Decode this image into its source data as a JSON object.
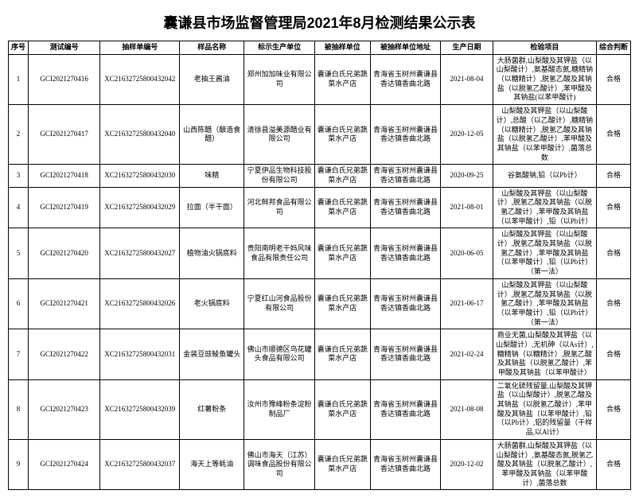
{
  "title": "囊谦县市场监督管理局2021年8月检测结果公示表",
  "headers": {
    "seq": "序号",
    "testId": "测试编号",
    "sampleId": "抽样单编号",
    "sampleName": "样品名称",
    "producer": "标示生产单位",
    "sampledUnit": "被抽样单位",
    "sampledAddr": "被抽样单位地址",
    "prodDate": "生产日期",
    "inspectItems": "检验项目",
    "judgement": "综合判断"
  },
  "rows": [
    {
      "seq": "1",
      "testId": "GCI2021270416",
      "sampleId": "XC21632725800432042",
      "sampleName": "老抽王酱油",
      "producer": "郑州加加味业有限公司",
      "sampledUnit": "囊谦白氏兄弟蔬菜水产店",
      "sampledAddr": "青海省玉树州囊谦县香达镇香曲北路",
      "prodDate": "2021-08-04",
      "inspectItems": "大肠菌群,山梨酸及其钾盐（以山梨酸计）,氨基酸态氮,糖精钠（以糖精计）,脱氢乙酸及其钠盐（以脱氢乙酸计）,苯甲酸及其钠盐(以苯甲酸计)",
      "judgement": "合格"
    },
    {
      "seq": "2",
      "testId": "GCI2021270417",
      "sampleId": "XC21632725800432040",
      "sampleName": "山西陈醋（酿造食醋）",
      "producer": "清徐县溢美源醋业有限公司",
      "sampledUnit": "囊谦白氏兄弟蔬菜水产店",
      "sampledAddr": "青海省玉树州囊谦县香达镇香曲北路",
      "prodDate": "2020-12-05",
      "inspectItems": "山梨酸及其钾盐（以山梨酸计）,总酸（以乙酸计）,糖精钠（以糖精计）,脱氢乙酸及其钠盐（以脱氢乙酸计）,苯甲酸及其钠盐（以苯甲酸计）,菌落总数",
      "judgement": "合格"
    },
    {
      "seq": "3",
      "testId": "GCI2021270418",
      "sampleId": "XC21632725800432030",
      "sampleName": "味精",
      "producer": "宁夏伊品生物科技股份有限公司",
      "sampledUnit": "囊谦白氏兄弟蔬菜水产店",
      "sampledAddr": "青海省玉树州囊谦县香达镇香曲北路",
      "prodDate": "2020-09-25",
      "inspectItems": "谷氨酸钠,铅（以Pb计）",
      "judgement": "合格"
    },
    {
      "seq": "4",
      "testId": "GCI2021270419",
      "sampleId": "XC21632725800432029",
      "sampleName": "拉面（半干面）",
      "producer": "河北鲜邦食品有限公司",
      "sampledUnit": "囊谦白氏兄弟蔬菜水产店",
      "sampledAddr": "青海省玉树州囊谦县香达镇香曲北路",
      "prodDate": "2021-08-01",
      "inspectItems": "山梨酸及其钾盐（以山梨酸计）,脱氢乙酸及其钠盐（以脱氢乙酸计）,苯甲酸及其钠盐（以苯甲酸计）,铅（以Pb计）",
      "judgement": "合格"
    },
    {
      "seq": "5",
      "testId": "GCI2021270420",
      "sampleId": "XC21632725800432027",
      "sampleName": "植物油火锅底料",
      "producer": "贵阳南明老干妈风味食品有限责任公司",
      "sampledUnit": "囊谦白氏兄弟蔬菜水产店",
      "sampledAddr": "青海省玉树州囊谦县香达镇香曲北路",
      "prodDate": "2020-06-05",
      "inspectItems": "山梨酸及其钾盐（以山梨酸计）,脱氢乙酸及其钠盐（以脱氢乙酸计）,苯甲酸及其钠盐（以苯甲酸计）,铅（以Pb计）（第一法）",
      "judgement": "合格"
    },
    {
      "seq": "6",
      "testId": "GCI2021270421",
      "sampleId": "XC21632725800432026",
      "sampleName": "老火锅底料",
      "producer": "宁夏红山河食品股份有限公司",
      "sampledUnit": "囊谦白氏兄弟蔬菜水产店",
      "sampledAddr": "青海省玉树州囊谦县香达镇香曲北路",
      "prodDate": "2021-06-17",
      "inspectItems": "山梨酸及其钾盐（以山梨酸计）,脱氢乙酸及其钠盐（以脱氢乙酸计）,苯甲酸及其钠盐（以苯甲酸计）,铅（以Pb计）（第一法）",
      "judgement": "合格"
    },
    {
      "seq": "7",
      "testId": "GCI2021270422",
      "sampleId": "XC21632725800432031",
      "sampleName": "金装豆豉鲮鱼罐头",
      "producer": "佛山市顺德区鸟花罐头食品有限公司",
      "sampledUnit": "囊谦白氏兄弟蔬菜水产店",
      "sampledAddr": "青海省玉树州囊谦县香达镇香曲北路",
      "prodDate": "2021-02-24",
      "inspectItems": "商业无菌,山梨酸及其钾盐（以山梨酸计）,无机砷（以As计）,糖精钠（以糖精计）,脱氢乙酸及其钠盐（以脱氢乙酸计）,苯甲酸及其钠盐（以苯甲酸计）",
      "judgement": "合格"
    },
    {
      "seq": "8",
      "testId": "GCI2021270423",
      "sampleId": "XC21632725800432039",
      "sampleName": "红薯粉条",
      "producer": "汝州市豫峰粉条淀粉制品厂",
      "sampledUnit": "囊谦白氏兄弟蔬菜水产店",
      "sampledAddr": "青海省玉树州囊谦县香达镇香曲北路",
      "prodDate": "2021-08-08",
      "inspectItems": "二氧化硫残留量,山梨酸及其钾盐（以山梨酸计）,脱氢乙酸及其钠盐（以脱氢乙酸计）,苯甲酸及其钠盐（以苯甲酸计）,铅（以Pb计）,铝的残留量（干样品,以Al计）",
      "judgement": "合格"
    },
    {
      "seq": "9",
      "testId": "GCI2021270424",
      "sampleId": "XC21632725800432037",
      "sampleName": "海天上等蚝油",
      "producer": "佛山市海天（江苏）调味食品股份有限公司",
      "sampledUnit": "囊谦白氏兄弟蔬菜水产店",
      "sampledAddr": "青海省玉树州囊谦县香达镇香曲北路",
      "prodDate": "2020-12-02",
      "inspectItems": "大肠菌群,山梨酸及其钾盐（以山梨酸计）,氨基酸态氮,脱氢乙酸及其钠盐（以脱氢乙酸计）,苯甲酸及其钠盐（以苯甲酸计）,菌落总数",
      "judgement": "合格"
    }
  ]
}
